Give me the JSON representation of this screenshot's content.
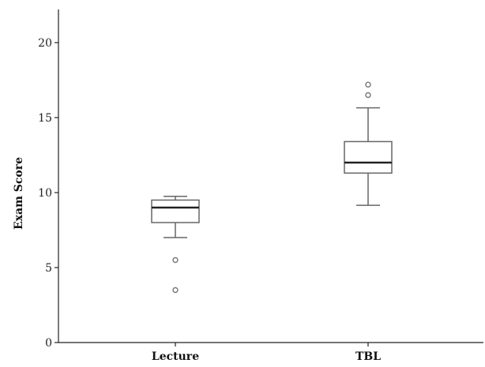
{
  "chart_data": {
    "type": "boxplot",
    "title": "",
    "xlabel": "",
    "ylabel": "Exam Score",
    "ylim": [
      0,
      22
    ],
    "yticks": [
      0,
      5,
      10,
      15,
      20
    ],
    "grid": false,
    "categories": [
      "Lecture",
      "TBL"
    ],
    "boxes": [
      {
        "category": "Lecture",
        "whisker_low": 7.0,
        "q1": 8.0,
        "median": 9.0,
        "q3": 9.5,
        "whisker_high": 9.75,
        "outliers": [
          5.5,
          3.5
        ]
      },
      {
        "category": "TBL",
        "whisker_low": 9.15,
        "q1": 11.3,
        "median": 12.0,
        "q3": 13.4,
        "whisker_high": 15.65,
        "outliers": [
          16.5,
          17.2
        ]
      }
    ]
  },
  "colors": {
    "axis": "#222222",
    "box_stroke": "#666666",
    "box_fill": "#ffffff",
    "median": "#222222",
    "outlier": "#777777"
  }
}
